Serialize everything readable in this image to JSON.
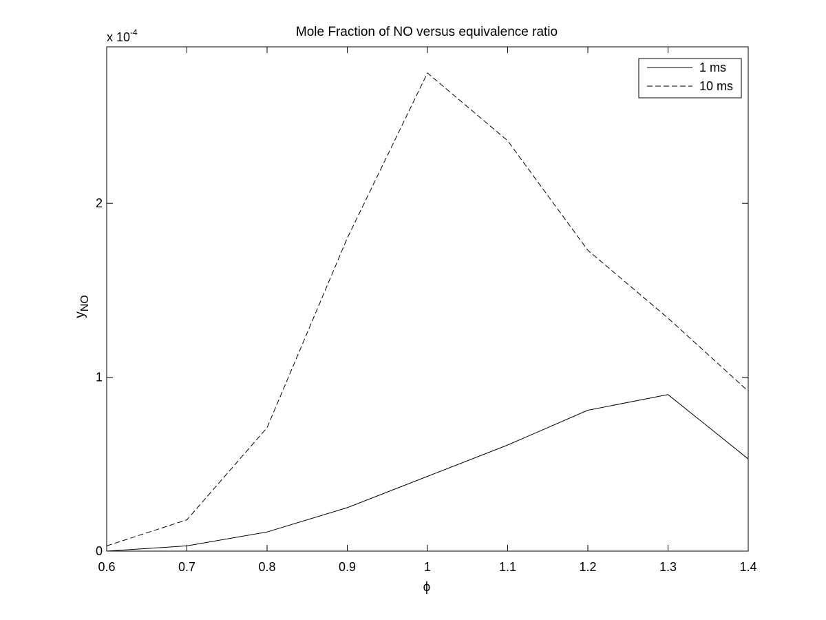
{
  "chart_data": {
    "type": "line",
    "title": "Mole Fraction of NO versus equivalence ratio",
    "xlabel": "ϕ",
    "ylabel": {
      "main": "y",
      "subscript": "NO"
    },
    "y_multiplier": {
      "base": "x 10",
      "exponent": "-4"
    },
    "xlim": [
      0.6,
      1.4
    ],
    "ylim": [
      0,
      2.9
    ],
    "x_ticks": [
      0.6,
      0.7,
      0.8,
      0.9,
      1.0,
      1.1,
      1.2,
      1.3,
      1.4
    ],
    "x_tick_labels": [
      "0.6",
      "0.7",
      "0.8",
      "0.9",
      "1",
      "1.1",
      "1.2",
      "1.3",
      "1.4"
    ],
    "y_ticks": [
      0,
      1,
      2
    ],
    "y_tick_labels": [
      "0",
      "1",
      "2"
    ],
    "grid": false,
    "legend_position": "top-right",
    "x": [
      0.6,
      0.7,
      0.8,
      0.9,
      1.0,
      1.1,
      1.2,
      1.3,
      1.4
    ],
    "series": [
      {
        "name": "1 ms",
        "style": "solid",
        "color": "#000000",
        "values": [
          0.0,
          0.03,
          0.11,
          0.25,
          0.43,
          0.61,
          0.81,
          0.9,
          0.53
        ]
      },
      {
        "name": "10 ms",
        "style": "dashed",
        "color": "#000000",
        "values": [
          0.03,
          0.18,
          0.71,
          1.8,
          2.75,
          2.36,
          1.73,
          1.34,
          0.92
        ]
      }
    ]
  }
}
